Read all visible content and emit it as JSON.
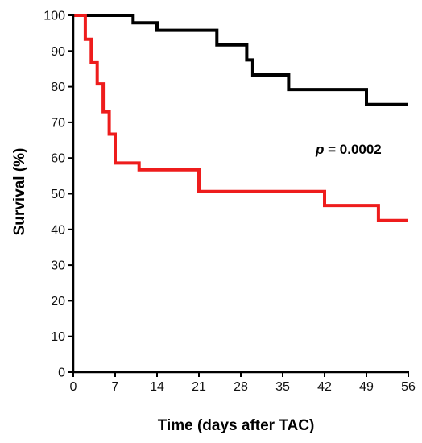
{
  "chart_data": {
    "type": "line",
    "step": true,
    "xlabel": "Time (days after TAC)",
    "ylabel": "Survival (%)",
    "xlim": [
      0,
      56
    ],
    "ylim": [
      0,
      100
    ],
    "x_ticks": [
      0,
      7,
      14,
      21,
      28,
      35,
      42,
      49,
      56
    ],
    "y_ticks": [
      0,
      10,
      20,
      30,
      40,
      50,
      60,
      70,
      80,
      90,
      100
    ],
    "grid": false,
    "annotation": {
      "prefix": "p",
      "text": " = 0.0002"
    },
    "series": [
      {
        "color": "#000000",
        "points": [
          [
            0,
            100
          ],
          [
            10,
            100
          ],
          [
            10,
            97.9
          ],
          [
            14,
            97.9
          ],
          [
            14,
            95.8
          ],
          [
            24,
            95.8
          ],
          [
            24,
            91.7
          ],
          [
            29,
            91.7
          ],
          [
            29,
            87.5
          ],
          [
            30,
            87.5
          ],
          [
            30,
            83.3
          ],
          [
            36,
            83.3
          ],
          [
            36,
            79.2
          ],
          [
            49,
            79.2
          ],
          [
            49,
            75
          ],
          [
            56,
            75
          ]
        ]
      },
      {
        "color": "#ee1c1c",
        "points": [
          [
            0,
            100
          ],
          [
            2,
            100
          ],
          [
            2,
            93.3
          ],
          [
            3,
            93.3
          ],
          [
            3,
            86.7
          ],
          [
            4,
            86.7
          ],
          [
            4,
            80.8
          ],
          [
            5,
            80.8
          ],
          [
            5,
            73
          ],
          [
            6,
            73
          ],
          [
            6,
            66.7
          ],
          [
            7,
            66.7
          ],
          [
            7,
            58.6
          ],
          [
            11,
            58.6
          ],
          [
            11,
            56.7
          ],
          [
            21,
            56.7
          ],
          [
            21,
            50.6
          ],
          [
            42,
            50.6
          ],
          [
            42,
            46.7
          ],
          [
            51,
            46.7
          ],
          [
            51,
            42.5
          ],
          [
            56,
            42.5
          ]
        ]
      }
    ]
  }
}
